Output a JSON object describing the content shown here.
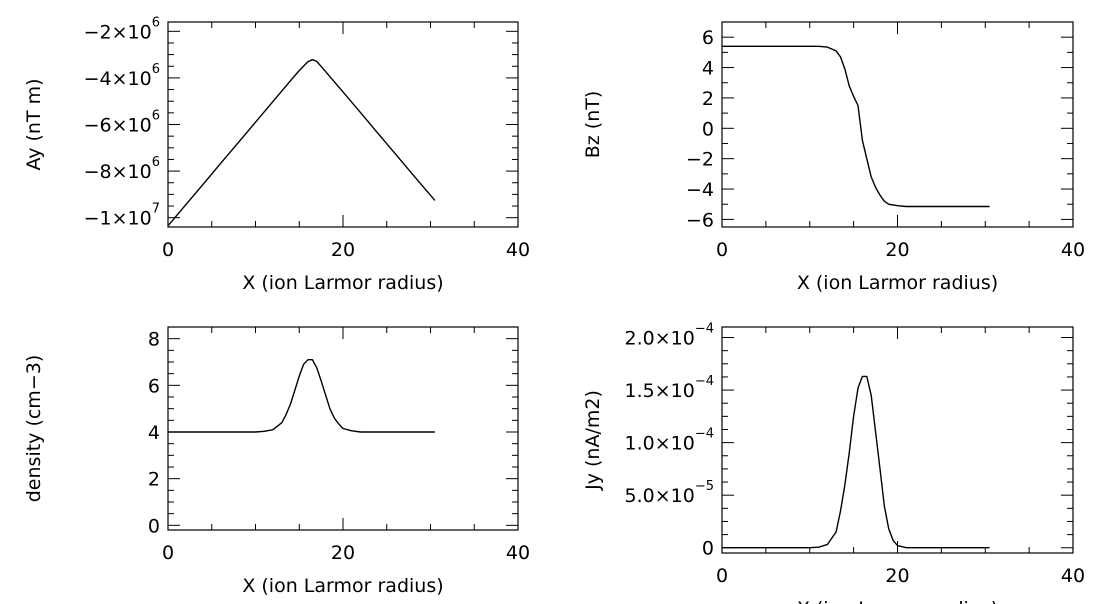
{
  "chart_data": [
    {
      "id": "ay",
      "type": "line",
      "xlabel": "X (ion Larmor radius)",
      "ylabel": "Ay (nT m)",
      "xlim": [
        0,
        40
      ],
      "ylim": [
        -10400000,
        -1600000
      ],
      "xticks": [
        0,
        20,
        40
      ],
      "xtick_labels": [
        "0",
        "20",
        "40"
      ],
      "yticks": [
        -10000000,
        -8000000,
        -6000000,
        -4000000,
        -2000000
      ],
      "ytick_labels": [
        {
          "mant": "−1×10",
          "exp": "7"
        },
        {
          "mant": "−8×10",
          "exp": "6"
        },
        {
          "mant": "−6×10",
          "exp": "6"
        },
        {
          "mant": "−4×10",
          "exp": "6"
        },
        {
          "mant": "−2×10",
          "exp": "6"
        }
      ],
      "yminor": 4,
      "grid": false,
      "series": [
        {
          "x": [
            0,
            2,
            4,
            6,
            8,
            10,
            12,
            14,
            15,
            16,
            16.5,
            17,
            18,
            20,
            22,
            24,
            26,
            28,
            30.5
          ],
          "y": [
            -10350000,
            -9460000,
            -8570000,
            -7680000,
            -6790000,
            -5900000,
            -5010000,
            -4120000,
            -3680000,
            -3300000,
            -3220000,
            -3290000,
            -3720000,
            -4600000,
            -5490000,
            -6380000,
            -7270000,
            -8160000,
            -9260000
          ]
        }
      ]
    },
    {
      "id": "bz",
      "type": "line",
      "xlabel": "X (ion Larmor radius)",
      "ylabel": "Bz (nT)",
      "xlim": [
        0,
        40
      ],
      "ylim": [
        -6.5,
        7
      ],
      "xticks": [
        0,
        20,
        40
      ],
      "xtick_labels": [
        "0",
        "20",
        "40"
      ],
      "yticks": [
        -6,
        -4,
        -2,
        0,
        2,
        4,
        6
      ],
      "ytick_labels": [
        {
          "mant": "−6",
          "exp": ""
        },
        {
          "mant": "−4",
          "exp": ""
        },
        {
          "mant": "−2",
          "exp": ""
        },
        {
          "mant": "0",
          "exp": ""
        },
        {
          "mant": "2",
          "exp": ""
        },
        {
          "mant": "4",
          "exp": ""
        },
        {
          "mant": "6",
          "exp": ""
        }
      ],
      "yminor": 2,
      "grid": false,
      "series": [
        {
          "x": [
            0,
            10,
            11,
            12,
            13,
            13.5,
            14,
            14.5,
            15,
            15.5,
            16,
            16.5,
            17,
            17.5,
            18,
            18.5,
            19,
            20,
            21,
            22,
            30.5
          ],
          "y": [
            5.4,
            5.4,
            5.4,
            5.35,
            5.1,
            4.7,
            3.9,
            2.8,
            2.1,
            1.5,
            -0.8,
            -2.0,
            -3.2,
            -3.9,
            -4.4,
            -4.8,
            -5.0,
            -5.1,
            -5.15,
            -5.15,
            -5.15
          ]
        }
      ]
    },
    {
      "id": "density",
      "type": "line",
      "xlabel": "X (ion Larmor radius)",
      "ylabel": "density (cm−3)",
      "xlim": [
        0,
        40
      ],
      "ylim": [
        -0.2,
        8.5
      ],
      "xticks": [
        0,
        20,
        40
      ],
      "xtick_labels": [
        "0",
        "20",
        "40"
      ],
      "yticks": [
        0,
        2,
        4,
        6,
        8
      ],
      "ytick_labels": [
        {
          "mant": "0",
          "exp": ""
        },
        {
          "mant": "2",
          "exp": ""
        },
        {
          "mant": "4",
          "exp": ""
        },
        {
          "mant": "6",
          "exp": ""
        },
        {
          "mant": "8",
          "exp": ""
        }
      ],
      "yminor": 4,
      "grid": false,
      "series": [
        {
          "x": [
            0,
            10,
            11,
            12,
            13,
            13.5,
            14,
            14.5,
            15,
            15.5,
            16,
            16.5,
            17,
            17.5,
            18,
            18.5,
            19,
            19.5,
            20,
            21,
            22,
            30.5
          ],
          "y": [
            4.0,
            4.0,
            4.03,
            4.1,
            4.4,
            4.75,
            5.2,
            5.8,
            6.4,
            6.9,
            7.1,
            7.1,
            6.75,
            6.2,
            5.6,
            5.0,
            4.6,
            4.35,
            4.15,
            4.05,
            4.0,
            4.0
          ]
        }
      ]
    },
    {
      "id": "jy",
      "type": "line",
      "xlabel": "X (ion Larmor radius)",
      "ylabel": "Jy (nA/m2)",
      "xlim": [
        0,
        40
      ],
      "ylim": [
        -5e-06,
        0.00021
      ],
      "xticks": [
        0,
        20,
        40
      ],
      "xtick_labels": [
        "0",
        "20",
        "40"
      ],
      "yticks": [
        0,
        5e-05,
        0.0001,
        0.00015,
        0.0002
      ],
      "ytick_labels": [
        {
          "mant": "0",
          "exp": ""
        },
        {
          "mant": "5.0×10",
          "exp": "−5"
        },
        {
          "mant": "1.0×10",
          "exp": "−4"
        },
        {
          "mant": "1.5×10",
          "exp": "−4"
        },
        {
          "mant": "2.0×10",
          "exp": "−4"
        }
      ],
      "yminor": 4,
      "grid": false,
      "series": [
        {
          "x": [
            0,
            10,
            11,
            12,
            13,
            13.5,
            14,
            14.5,
            15,
            15.5,
            16,
            16.5,
            17,
            17.5,
            18,
            18.5,
            19,
            19.5,
            20,
            21,
            22,
            30.5
          ],
          "y": [
            0,
            0,
            5e-07,
            3e-06,
            1.5e-05,
            3.5e-05,
            6e-05,
            9e-05,
            0.000125,
            0.000152,
            0.000163,
            0.000163,
            0.000145,
            0.00011,
            7.5e-05,
            4e-05,
            1.8e-05,
            7e-06,
            2e-06,
            0,
            0,
            0
          ]
        }
      ]
    }
  ]
}
